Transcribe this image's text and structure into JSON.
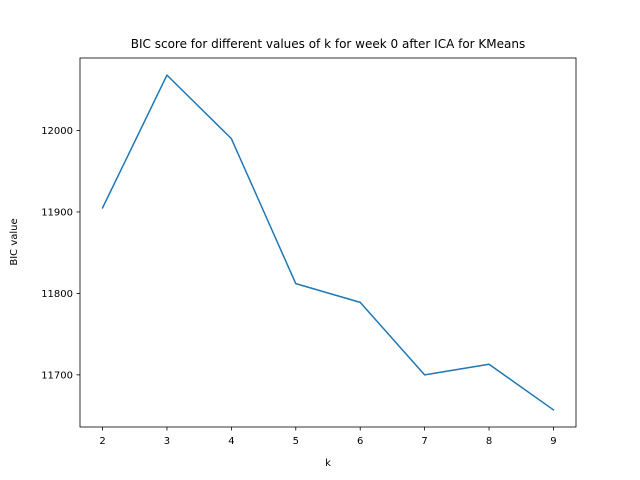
{
  "chart_data": {
    "type": "line",
    "title": "BIC score for different values of k for week 0 after ICA for KMeans",
    "xlabel": "k",
    "ylabel": "BIC value",
    "x": [
      2,
      3,
      4,
      5,
      6,
      7,
      8,
      9
    ],
    "series": [
      {
        "values": [
          11905,
          12068,
          11990,
          11812,
          11789,
          11700,
          11713,
          11657
        ],
        "color": "#1f77b4"
      }
    ],
    "xlim": [
      1.65,
      9.35
    ],
    "ylim": [
      11636,
      12089
    ],
    "xticks": [
      2,
      3,
      4,
      5,
      6,
      7,
      8,
      9
    ],
    "yticks": [
      11700,
      11800,
      11900,
      12000
    ],
    "grid": false,
    "legend": "none"
  }
}
